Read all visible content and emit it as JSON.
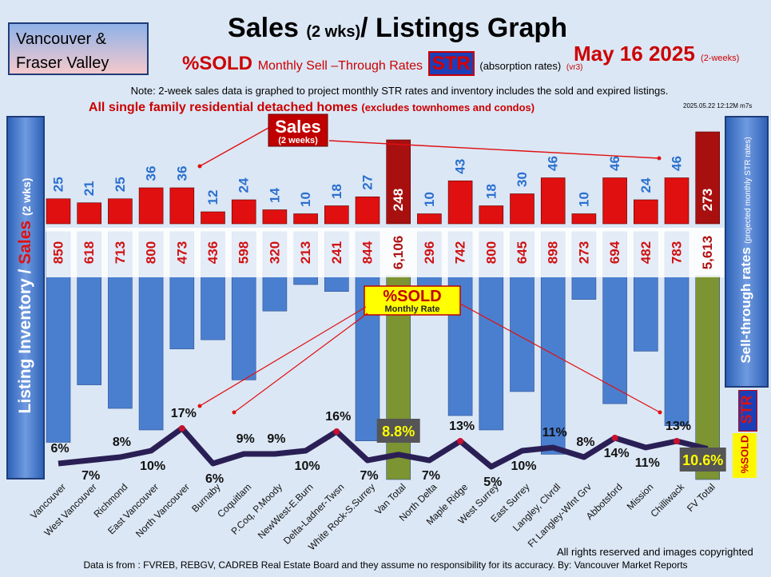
{
  "header": {
    "region_line1": "Vancouver &",
    "region_line2": "Fraser Valley",
    "title_main": "Sales",
    "title_small": "(2 wks)",
    "title_rest": "/ Listings Graph",
    "sold_label": "%SOLD",
    "str_text": "Monthly Sell –Through Rates",
    "str_badge": "STR",
    "absorption": "(absorption rates)",
    "version": "(vr3)",
    "date": "May 16 2025",
    "date_note": "(2-weeks)",
    "note": "Note: 2-week sales data is graphed to project monthly STR rates and inventory includes the sold and expired listings.",
    "headline": "All single family residential detached homes",
    "headline_note": "(excludes townhomes and condos)",
    "stamp": "2025.05.22 12:12M m7s"
  },
  "side": {
    "left_label_1": "Listing Inventory / ",
    "left_label_2": "Sales",
    "left_label_3": "(2 wks)",
    "right_label": "Sell-through rates",
    "right_note": "(projected monthly STR rates)",
    "right_sold": "%SOLD",
    "right_str": "STR"
  },
  "callouts": {
    "sales": "Sales",
    "sales_sub": "(2 weeks)",
    "sold": "%SOLD",
    "sold_sub": "Monthly Rate"
  },
  "footer": {
    "rights": "All rights reserved and  images copyrighted",
    "source": "Data is from : FVREB, REBGV, CADREB Real Estate Board and they assume no responsibility for its accuracy. By: Vancouver Market Reports"
  },
  "colors": {
    "inventory": "#4a7fd0",
    "total_inventory": "#7d9433",
    "sales": "#e01010",
    "total_sales": "#a81010",
    "str_line": "#2a1f55",
    "str_peak": "#c81030"
  },
  "chart_data": {
    "type": "bar",
    "categories": [
      "Vancouver",
      "West Vancouver",
      "Richmond",
      "East Vancouver",
      "North Vancouver",
      "Burnaby",
      "Coquitlam",
      "P.Coq, P.Moody",
      "NewWest-E.Burn",
      "Delta-Ladner-Twsn",
      "White Rock-S.Surrey",
      "Van Total",
      "North Delta",
      "Maple Ridge",
      "West Surrey",
      "East Surrey",
      "Langley, Clvrdl",
      "Ft Langley-Wlnt Grv",
      "Abbotsford",
      "Mission",
      "Chilliwack",
      "FV Total"
    ],
    "series": [
      {
        "name": "Sales",
        "values": [
          25,
          21,
          25,
          36,
          36,
          12,
          24,
          14,
          10,
          18,
          27,
          248,
          10,
          43,
          18,
          30,
          46,
          10,
          46,
          24,
          46,
          273
        ]
      },
      {
        "name": "Listing Inventory",
        "labels": [
          "850",
          "618",
          "713",
          "800",
          "473",
          "436",
          "598",
          "320",
          "213",
          "241",
          "844",
          "6,106",
          "296",
          "742",
          "800",
          "645",
          "898",
          "273",
          "694",
          "482",
          "783",
          "5,613"
        ],
        "values": [
          850,
          618,
          713,
          800,
          473,
          436,
          598,
          320,
          213,
          241,
          844,
          6106,
          296,
          742,
          800,
          645,
          898,
          273,
          694,
          482,
          783,
          5613
        ]
      },
      {
        "name": "Sell-through rates",
        "labels": [
          "6%",
          "7%",
          "8%",
          "10%",
          "17%",
          "6%",
          "9%",
          "9%",
          "10%",
          "16%",
          "7%",
          "8.8%",
          "7%",
          "13%",
          "5%",
          "10%",
          "11%",
          "8%",
          "14%",
          "11%",
          "13%",
          "10.6%"
        ],
        "values": [
          6,
          7,
          8,
          10,
          17,
          6,
          9,
          9,
          10,
          16,
          7,
          8.8,
          7,
          13,
          5,
          10,
          11,
          8,
          14,
          11,
          13,
          10.6
        ]
      }
    ]
  }
}
